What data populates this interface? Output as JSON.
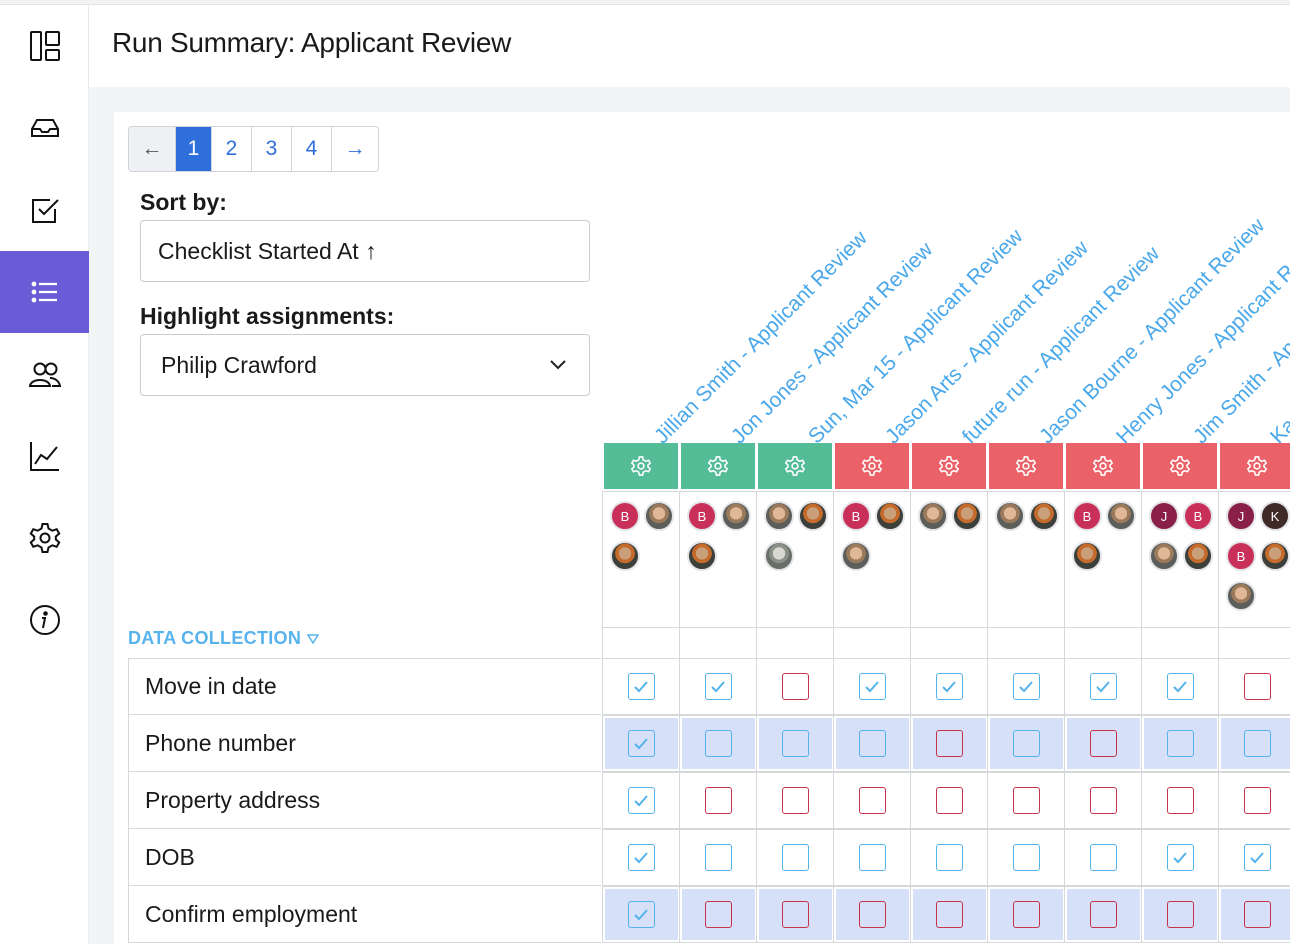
{
  "app": {
    "title": "Run Summary: Applicant Review"
  },
  "nav": [
    {
      "name": "dashboard-icon"
    },
    {
      "name": "inbox-icon"
    },
    {
      "name": "checklist-icon"
    },
    {
      "name": "list-icon",
      "active": true
    },
    {
      "name": "users-icon"
    },
    {
      "name": "chart-icon"
    },
    {
      "name": "settings-icon"
    },
    {
      "name": "info-icon"
    }
  ],
  "pager": {
    "prev": "←",
    "pages": [
      "1",
      "2",
      "3",
      "4"
    ],
    "current": "1",
    "next": "→"
  },
  "sort": {
    "label": "Sort by:",
    "value": "Checklist Started At ↑"
  },
  "highlight": {
    "label": "Highlight assignments:",
    "value": "Philip Crawford"
  },
  "section": {
    "title": "DATA COLLECTION"
  },
  "colors": {
    "accent": "#6a5cd6",
    "link": "#4aa8ea",
    "completed": "#55bc98",
    "incomplete": "#ea6167",
    "checkbox_blue": "#53b3ea",
    "checkbox_red": "#c7334b",
    "highlight_row": "#d6e0f8"
  },
  "columns": [
    {
      "title": "Jillian Smith - Applicant Review",
      "status": "green",
      "assignees": [
        "B",
        "photo",
        "photo2"
      ]
    },
    {
      "title": "Jon Jones - Applicant Review",
      "status": "green",
      "assignees": [
        "B",
        "photo",
        "photo2"
      ]
    },
    {
      "title": "Sun, Mar 15 - Applicant Review",
      "status": "green",
      "assignees": [
        "photo",
        "photo2",
        "photo3"
      ]
    },
    {
      "title": "Jason Arts - Applicant Review",
      "status": "red",
      "assignees": [
        "B",
        "photo2",
        "photo"
      ]
    },
    {
      "title": "future run - Applicant Review",
      "status": "red",
      "assignees": [
        "photo",
        "photo2"
      ]
    },
    {
      "title": "Jason Bourne - Applicant Review",
      "status": "red",
      "assignees": [
        "photo",
        "photo2"
      ]
    },
    {
      "title": "Henry Jones - Applicant Review",
      "status": "red",
      "assignees": [
        "B",
        "photo",
        "photo2"
      ]
    },
    {
      "title": "Jim Smith - Applicant Review",
      "status": "red",
      "assignees": [
        "J",
        "B",
        "photo",
        "photo2"
      ]
    },
    {
      "title": "Karl",
      "status": "red",
      "assignees": [
        "J",
        "K",
        "B",
        "photo2",
        "photo"
      ]
    }
  ],
  "rows": [
    {
      "label": "Move in date",
      "highlight": false,
      "cells": [
        "checked",
        "checked",
        "missing",
        "checked",
        "checked",
        "checked",
        "checked",
        "checked",
        "missing"
      ]
    },
    {
      "label": "Phone number",
      "highlight": true,
      "cells": [
        "checked",
        "empty",
        "empty",
        "empty",
        "missing",
        "empty",
        "missing",
        "empty",
        "empty"
      ]
    },
    {
      "label": "Property address",
      "highlight": false,
      "cells": [
        "checked",
        "missing",
        "missing",
        "missing",
        "missing",
        "missing",
        "missing",
        "missing",
        "missing"
      ]
    },
    {
      "label": "DOB",
      "highlight": false,
      "cells": [
        "checked",
        "empty",
        "empty",
        "empty",
        "empty",
        "empty",
        "empty",
        "checked",
        "checked"
      ]
    },
    {
      "label": "Confirm employment",
      "highlight": true,
      "cells": [
        "checked",
        "missing",
        "missing",
        "missing",
        "missing",
        "missing",
        "missing",
        "missing",
        "missing"
      ]
    }
  ]
}
